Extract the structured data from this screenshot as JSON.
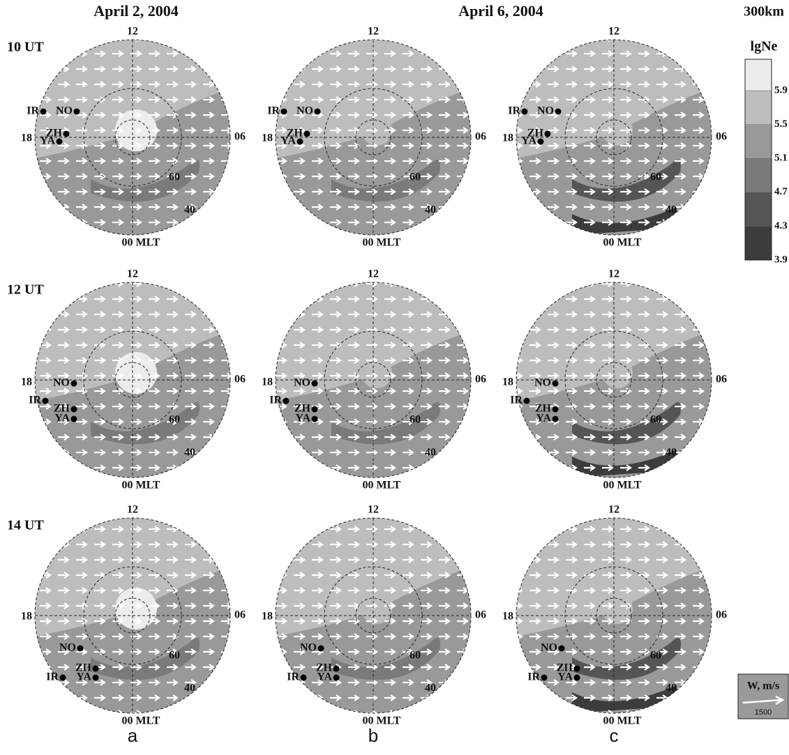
{
  "titles": [
    "April 2, 2004",
    "April 6, 2004"
  ],
  "altitude": "300km",
  "row_labels": [
    "10 UT",
    "12 UT",
    "14 UT"
  ],
  "column_letters": [
    "a",
    "b",
    "c"
  ],
  "dial": {
    "top": "12",
    "left": "18",
    "right": "06",
    "bottom": "00 MLT",
    "lat_60": "60",
    "lat_40": "40"
  },
  "stations": [
    "IR",
    "NO",
    "ZH",
    "YA"
  ],
  "colorbar": {
    "title": "lgNe",
    "ticks": [
      3.9,
      4.3,
      4.7,
      5.1,
      5.5,
      5.9
    ]
  },
  "vector_legend": {
    "title": "W, m/s",
    "scale": "1500"
  }
}
